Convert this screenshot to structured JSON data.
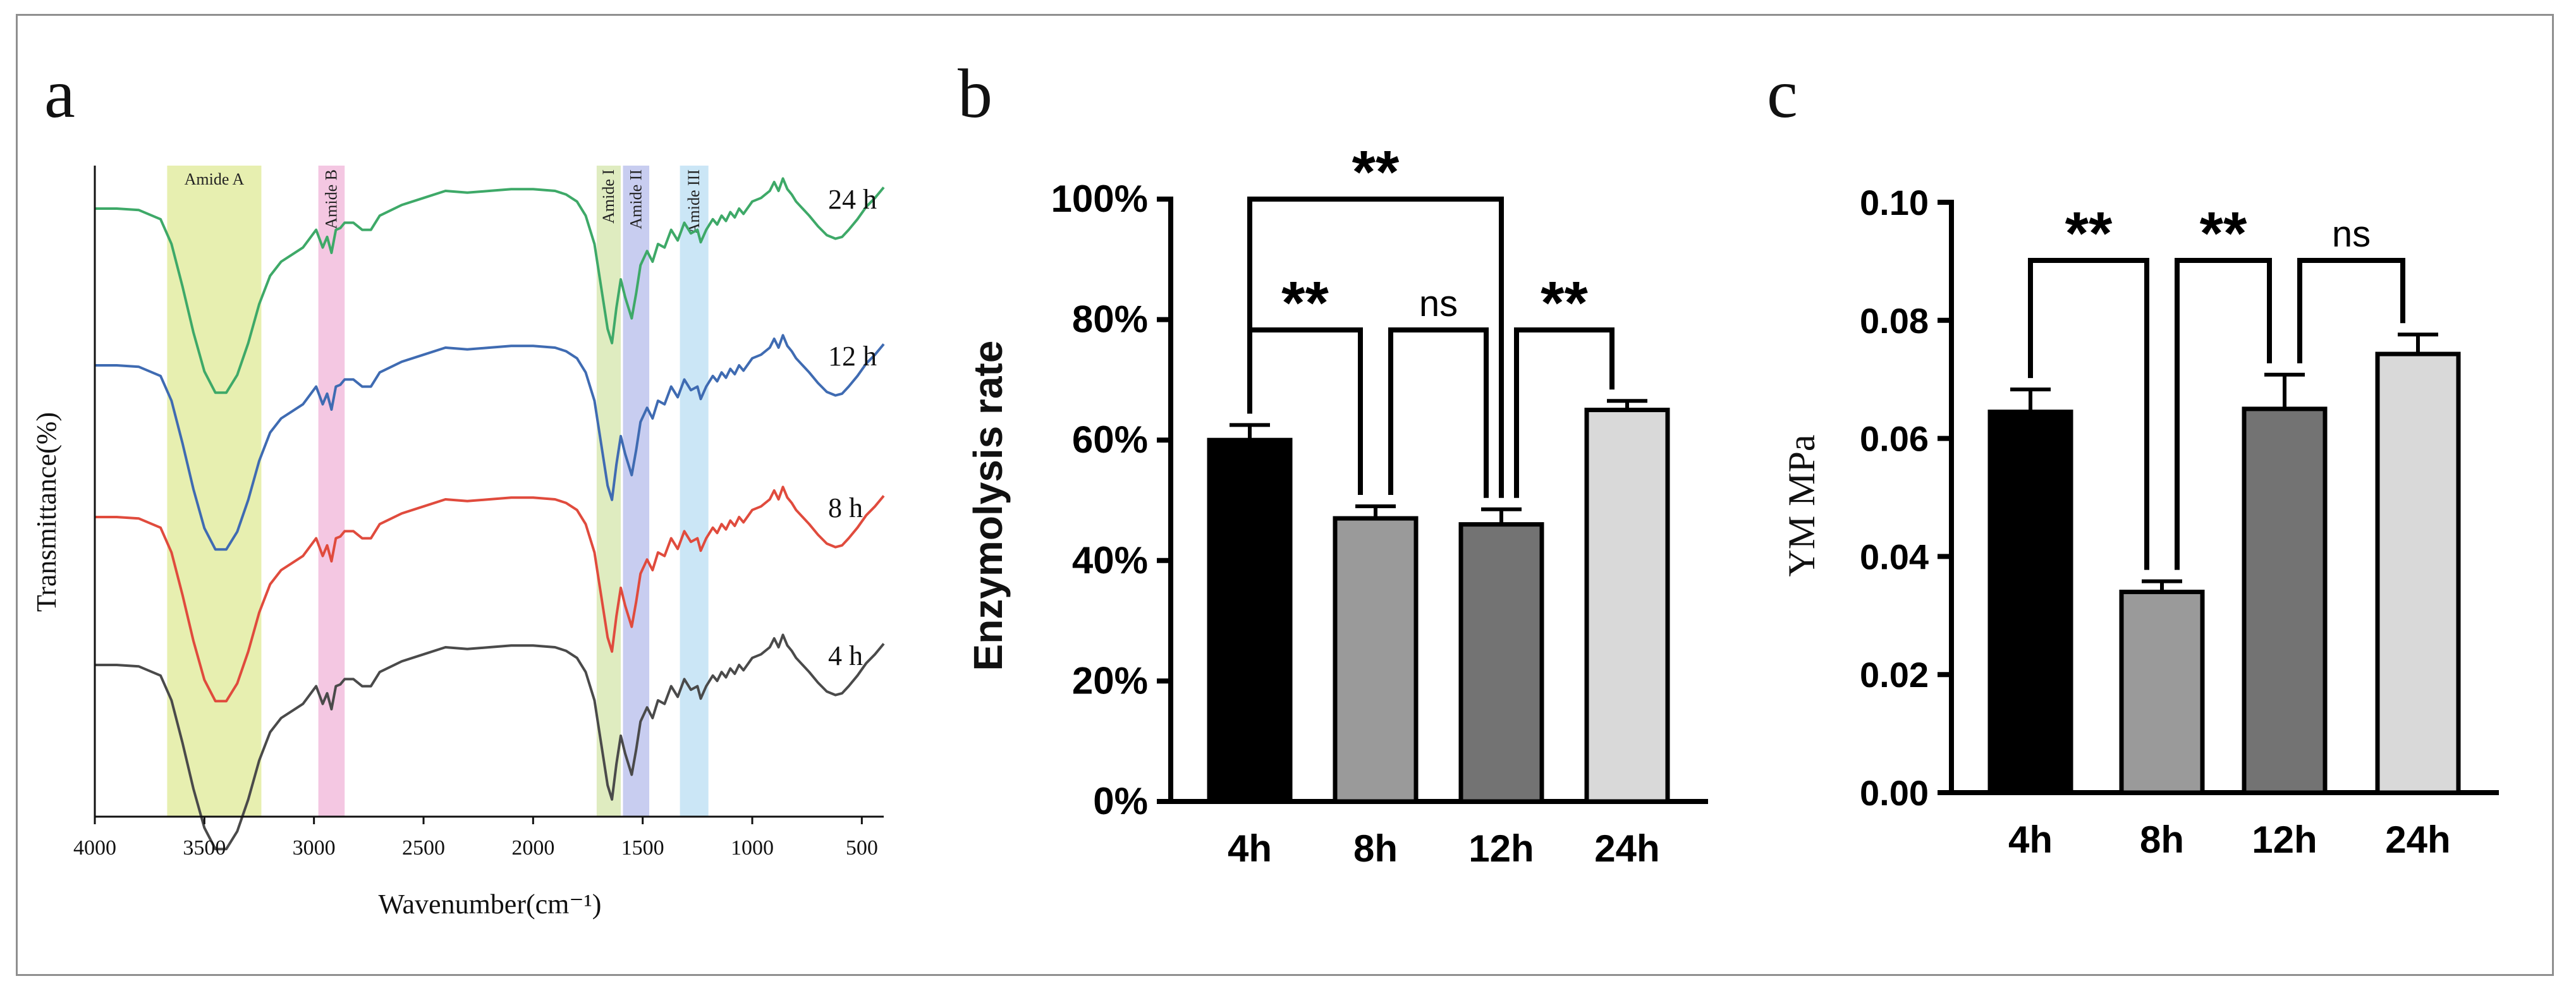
{
  "figure": {
    "panel_labels": [
      "a",
      "b",
      "c"
    ]
  },
  "chart_data": [
    {
      "type": "line",
      "panel": "a",
      "xlabel": "Wavenumber(cm⁻¹)",
      "ylabel": "Transmittance(%)",
      "xlim": [
        4000,
        400
      ],
      "x_ticks": [
        4000,
        3500,
        3000,
        2500,
        2000,
        1500,
        1000,
        500
      ],
      "bands": [
        {
          "label": "Amide A",
          "from": 3670,
          "to": 3240,
          "color": "#e7efb0"
        },
        {
          "label": "Amide B",
          "from": 2980,
          "to": 2860,
          "color": "#f4c7e2"
        },
        {
          "label": "Amide I",
          "from": 1710,
          "to": 1600,
          "color": "#dfecc0"
        },
        {
          "label": "Amide II",
          "from": 1590,
          "to": 1470,
          "color": "#c8cdf0"
        },
        {
          "label": "Amide III",
          "from": 1330,
          "to": 1200,
          "color": "#cbe6f6"
        }
      ],
      "series": [
        {
          "name": "24 h",
          "color": "#3ea968"
        },
        {
          "name": "12 h",
          "color": "#3f6bb2"
        },
        {
          "name": "8 h",
          "color": "#e04b3d"
        },
        {
          "name": "4 h",
          "color": "#4a4a4a"
        }
      ]
    },
    {
      "type": "bar",
      "panel": "b",
      "categories": [
        "4h",
        "8h",
        "12h",
        "24h"
      ],
      "values": [
        60,
        47,
        46,
        65
      ],
      "errors": [
        2.5,
        2,
        2.5,
        1.5
      ],
      "colors": [
        "#000000",
        "#9a9a9a",
        "#737373",
        "#d9d9d9"
      ],
      "ylabel": "Enzymolysis rate",
      "ylim": [
        0,
        100
      ],
      "y_ticks": [
        "0%",
        "20%",
        "40%",
        "60%",
        "80%",
        "100%"
      ],
      "comparisons": [
        {
          "from": 0,
          "to": 2,
          "label": "**"
        },
        {
          "from": 0,
          "to": 1,
          "label": "**"
        },
        {
          "from": 1,
          "to": 2,
          "label": "ns"
        },
        {
          "from": 2,
          "to": 3,
          "label": "**"
        }
      ]
    },
    {
      "type": "bar",
      "panel": "c",
      "categories": [
        "4h",
        "8h",
        "12h",
        "24h"
      ],
      "values": [
        0.0645,
        0.034,
        0.065,
        0.0743
      ],
      "errors": [
        0.0038,
        0.0018,
        0.0058,
        0.0033
      ],
      "colors": [
        "#000000",
        "#9a9a9a",
        "#737373",
        "#d9d9d9"
      ],
      "ylabel": "YM MPa",
      "ylim": [
        0,
        0.1
      ],
      "y_ticks": [
        "0.00",
        "0.02",
        "0.04",
        "0.06",
        "0.08",
        "0.10"
      ],
      "comparisons": [
        {
          "from": 0,
          "to": 1,
          "label": "**"
        },
        {
          "from": 1,
          "to": 2,
          "label": "**"
        },
        {
          "from": 2,
          "to": 3,
          "label": "ns"
        }
      ]
    }
  ]
}
